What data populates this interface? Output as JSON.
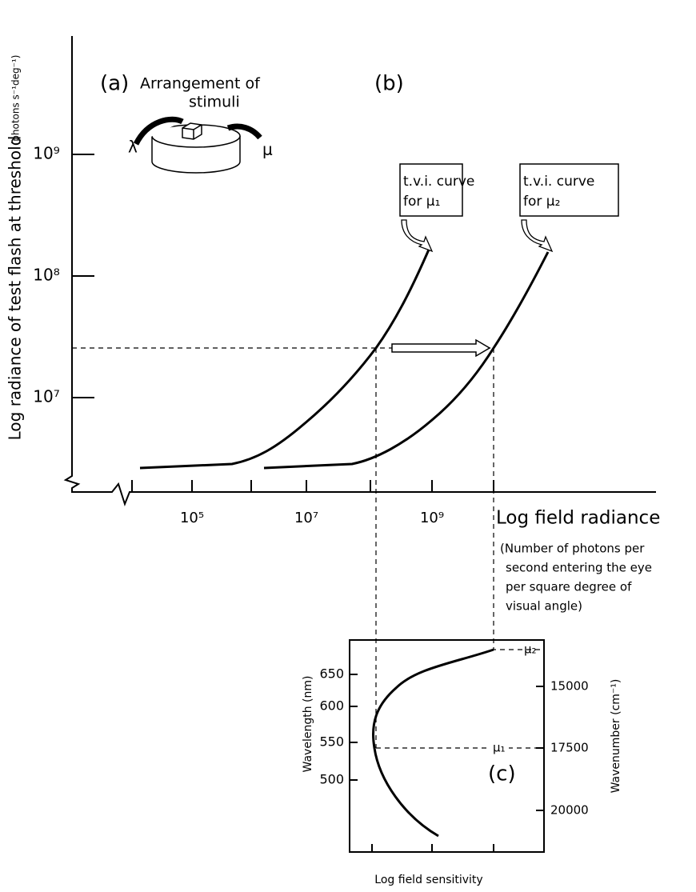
{
  "panel_a": {
    "label": "(a)",
    "title": "Arrangement of",
    "title2": "stimuli",
    "lambda": "λ",
    "mu": "μ"
  },
  "panel_b": {
    "label": "(b)",
    "y_axis": {
      "label": "Log radiance of test flash at threshold",
      "unit": "(photons s⁻¹deg⁻¹)",
      "ticks": [
        "10⁹",
        "10⁸",
        "10⁷"
      ]
    },
    "x_axis": {
      "label": "Log field radiance",
      "ticks": [
        "10⁵",
        "10⁷",
        "10⁹"
      ],
      "note": [
        "(Number of photons per",
        "second entering the eye",
        "per square degree of",
        "visual angle)"
      ]
    },
    "boxes": [
      {
        "line1": "t.v.i. curve",
        "line2": "for μ₁"
      },
      {
        "line1": "t.v.i. curve",
        "line2": "for μ₂"
      }
    ]
  },
  "panel_c": {
    "label": "(c)",
    "y_left": {
      "label": "Wavelength (nm)",
      "ticks": [
        "650",
        "600",
        "550",
        "500"
      ]
    },
    "y_right": {
      "label": "Wavenumber (cm⁻¹)",
      "ticks": [
        "15000",
        "17500",
        "20000"
      ]
    },
    "x_label": "Log field sensitivity",
    "mu1": "μ₁",
    "mu2": "μ₂"
  }
}
